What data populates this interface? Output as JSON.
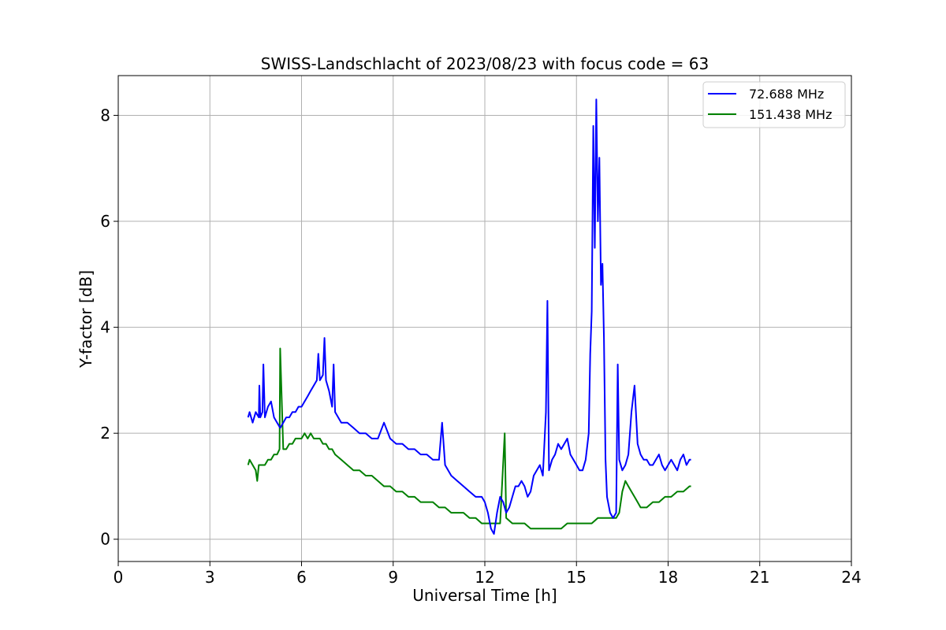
{
  "chart_data": {
    "type": "line",
    "title": "SWISS-Landschlacht of 2023/08/23 with focus code = 63",
    "xlabel": "Universal Time [h]",
    "ylabel": "Y-factor [dB]",
    "xlim": [
      0,
      24
    ],
    "ylim": [
      -0.42,
      8.75
    ],
    "xticks": [
      0,
      3,
      6,
      9,
      12,
      15,
      18,
      21,
      24
    ],
    "yticks": [
      0,
      2,
      4,
      6,
      8
    ],
    "grid": true,
    "legend_position": "top-right",
    "colors": {
      "series1": "#0000ff",
      "series2": "#008000"
    },
    "series": [
      {
        "name": "72.688 MHz",
        "color": "#0000ff",
        "x": [
          4.25,
          4.3,
          4.4,
          4.5,
          4.6,
          4.62,
          4.65,
          4.72,
          4.75,
          4.8,
          4.9,
          5.0,
          5.1,
          5.2,
          5.3,
          5.4,
          5.5,
          5.6,
          5.7,
          5.8,
          5.9,
          6.0,
          6.1,
          6.2,
          6.3,
          6.4,
          6.5,
          6.55,
          6.6,
          6.7,
          6.75,
          6.8,
          6.9,
          7.0,
          7.05,
          7.1,
          7.2,
          7.3,
          7.5,
          7.7,
          7.9,
          8.1,
          8.3,
          8.5,
          8.7,
          8.9,
          9.1,
          9.3,
          9.5,
          9.7,
          9.9,
          10.1,
          10.3,
          10.5,
          10.6,
          10.7,
          10.9,
          11.1,
          11.3,
          11.5,
          11.7,
          11.9,
          12.0,
          12.1,
          12.2,
          12.3,
          12.4,
          12.5,
          12.6,
          12.7,
          12.8,
          12.9,
          13.0,
          13.1,
          13.2,
          13.3,
          13.4,
          13.5,
          13.6,
          13.7,
          13.8,
          13.9,
          14.0,
          14.05,
          14.1,
          14.2,
          14.3,
          14.4,
          14.5,
          14.6,
          14.7,
          14.8,
          14.9,
          15.0,
          15.1,
          15.2,
          15.3,
          15.4,
          15.45,
          15.5,
          15.55,
          15.6,
          15.65,
          15.7,
          15.75,
          15.8,
          15.85,
          15.9,
          15.95,
          16.0,
          16.1,
          16.2,
          16.3,
          16.35,
          16.4,
          16.5,
          16.6,
          16.7,
          16.8,
          16.9,
          17.0,
          17.1,
          17.2,
          17.3,
          17.4,
          17.5,
          17.6,
          17.7,
          17.8,
          17.9,
          18.0,
          18.1,
          18.2,
          18.3,
          18.4,
          18.5,
          18.6,
          18.7,
          18.75
        ],
        "y": [
          2.3,
          2.4,
          2.2,
          2.4,
          2.3,
          2.9,
          2.3,
          2.4,
          3.3,
          2.3,
          2.5,
          2.6,
          2.3,
          2.2,
          2.1,
          2.2,
          2.3,
          2.3,
          2.4,
          2.4,
          2.5,
          2.5,
          2.6,
          2.7,
          2.8,
          2.9,
          3.0,
          3.5,
          3.0,
          3.1,
          3.8,
          3.0,
          2.8,
          2.5,
          3.3,
          2.4,
          2.3,
          2.2,
          2.2,
          2.1,
          2.0,
          2.0,
          1.9,
          1.9,
          2.2,
          1.9,
          1.8,
          1.8,
          1.7,
          1.7,
          1.6,
          1.6,
          1.5,
          1.5,
          2.2,
          1.4,
          1.2,
          1.1,
          1.0,
          0.9,
          0.8,
          0.8,
          0.7,
          0.5,
          0.2,
          0.1,
          0.5,
          0.8,
          0.7,
          0.5,
          0.6,
          0.8,
          1.0,
          1.0,
          1.1,
          1.0,
          0.8,
          0.9,
          1.2,
          1.3,
          1.4,
          1.2,
          2.4,
          4.5,
          1.3,
          1.5,
          1.6,
          1.8,
          1.7,
          1.8,
          1.9,
          1.6,
          1.5,
          1.4,
          1.3,
          1.3,
          1.5,
          2.0,
          3.5,
          4.3,
          7.8,
          5.5,
          8.3,
          6.0,
          7.2,
          4.8,
          5.2,
          3.8,
          1.5,
          0.8,
          0.5,
          0.4,
          0.5,
          3.3,
          1.5,
          1.3,
          1.4,
          1.6,
          2.4,
          2.9,
          1.8,
          1.6,
          1.5,
          1.5,
          1.4,
          1.4,
          1.5,
          1.6,
          1.4,
          1.3,
          1.4,
          1.5,
          1.4,
          1.3,
          1.5,
          1.6,
          1.4,
          1.5,
          1.5
        ]
      },
      {
        "name": "151.438 MHz",
        "color": "#008000",
        "x": [
          4.25,
          4.3,
          4.4,
          4.5,
          4.55,
          4.6,
          4.7,
          4.8,
          4.9,
          5.0,
          5.1,
          5.2,
          5.28,
          5.3,
          5.4,
          5.5,
          5.6,
          5.7,
          5.8,
          5.9,
          6.0,
          6.1,
          6.2,
          6.3,
          6.4,
          6.5,
          6.6,
          6.7,
          6.8,
          6.9,
          7.0,
          7.1,
          7.3,
          7.5,
          7.7,
          7.9,
          8.1,
          8.3,
          8.5,
          8.7,
          8.9,
          9.1,
          9.3,
          9.5,
          9.7,
          9.9,
          10.1,
          10.3,
          10.5,
          10.7,
          10.9,
          11.1,
          11.3,
          11.5,
          11.7,
          11.9,
          12.1,
          12.3,
          12.5,
          12.65,
          12.7,
          12.9,
          13.1,
          13.3,
          13.5,
          13.7,
          13.9,
          14.1,
          14.3,
          14.5,
          14.7,
          14.9,
          15.1,
          15.3,
          15.5,
          15.7,
          15.9,
          16.1,
          16.3,
          16.4,
          16.5,
          16.6,
          16.7,
          16.8,
          16.9,
          17.0,
          17.1,
          17.3,
          17.5,
          17.7,
          17.9,
          18.1,
          18.3,
          18.5,
          18.7,
          18.75
        ],
        "y": [
          1.4,
          1.5,
          1.4,
          1.3,
          1.1,
          1.4,
          1.4,
          1.4,
          1.5,
          1.5,
          1.6,
          1.6,
          1.7,
          3.6,
          1.7,
          1.7,
          1.8,
          1.8,
          1.9,
          1.9,
          1.9,
          2.0,
          1.9,
          2.0,
          1.9,
          1.9,
          1.9,
          1.8,
          1.8,
          1.7,
          1.7,
          1.6,
          1.5,
          1.4,
          1.3,
          1.3,
          1.2,
          1.2,
          1.1,
          1.0,
          1.0,
          0.9,
          0.9,
          0.8,
          0.8,
          0.7,
          0.7,
          0.7,
          0.6,
          0.6,
          0.5,
          0.5,
          0.5,
          0.4,
          0.4,
          0.3,
          0.3,
          0.3,
          0.3,
          2.0,
          0.4,
          0.3,
          0.3,
          0.3,
          0.2,
          0.2,
          0.2,
          0.2,
          0.2,
          0.2,
          0.3,
          0.3,
          0.3,
          0.3,
          0.3,
          0.4,
          0.4,
          0.4,
          0.4,
          0.5,
          0.9,
          1.1,
          1.0,
          0.9,
          0.8,
          0.7,
          0.6,
          0.6,
          0.7,
          0.7,
          0.8,
          0.8,
          0.9,
          0.9,
          1.0,
          1.0
        ]
      }
    ]
  }
}
